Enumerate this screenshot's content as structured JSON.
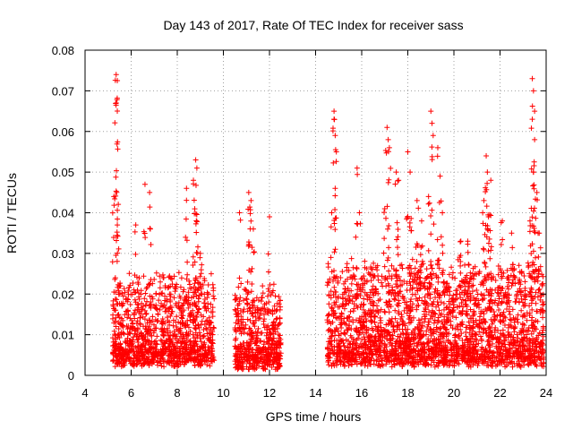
{
  "chart_data": {
    "type": "scatter",
    "title": "Day 143 of 2017, Rate Of TEC Index for receiver sass",
    "xlabel": "GPS time / hours",
    "ylabel": "ROTI / TECUs",
    "xlim": [
      4,
      24
    ],
    "ylim": [
      0,
      0.08
    ],
    "x_ticks": [
      4,
      6,
      8,
      10,
      12,
      14,
      16,
      18,
      20,
      22,
      24
    ],
    "x_tick_labels": [
      "4",
      "6",
      "8",
      "10",
      "12",
      "14",
      "16",
      "18",
      "20",
      "22",
      "24"
    ],
    "y_ticks": [
      0,
      0.01,
      0.02,
      0.03,
      0.04,
      0.05,
      0.06,
      0.07,
      0.08
    ],
    "y_tick_labels": [
      "0",
      "0.01",
      "0.02",
      "0.03",
      "0.04",
      "0.05",
      "0.06",
      "0.07",
      "0.08"
    ],
    "grid": true,
    "marker": "+",
    "color": "#ff0000",
    "series": [
      {
        "name": "ROTI",
        "segments": [
          {
            "x_start": 5.2,
            "x_end": 9.6,
            "typical_max": 0.025,
            "base": 0.005
          },
          {
            "x_start": 10.5,
            "x_end": 12.5,
            "typical_max": 0.022,
            "base": 0.004
          },
          {
            "x_start": 14.5,
            "x_end": 23.9,
            "typical_max": 0.028,
            "base": 0.005
          }
        ],
        "peaks": [
          {
            "x": 5.35,
            "y": 0.074
          },
          {
            "x": 5.4,
            "y": 0.0725
          },
          {
            "x": 5.35,
            "y": 0.067
          },
          {
            "x": 5.25,
            "y": 0.044
          },
          {
            "x": 5.4,
            "y": 0.037
          },
          {
            "x": 6.2,
            "y": 0.037
          },
          {
            "x": 6.6,
            "y": 0.047
          },
          {
            "x": 6.8,
            "y": 0.045
          },
          {
            "x": 8.8,
            "y": 0.053
          },
          {
            "x": 8.85,
            "y": 0.051
          },
          {
            "x": 8.7,
            "y": 0.048
          },
          {
            "x": 8.4,
            "y": 0.046
          },
          {
            "x": 9.0,
            "y": 0.03
          },
          {
            "x": 10.7,
            "y": 0.04
          },
          {
            "x": 11.1,
            "y": 0.045
          },
          {
            "x": 11.2,
            "y": 0.043
          },
          {
            "x": 11.3,
            "y": 0.036
          },
          {
            "x": 12.0,
            "y": 0.039
          },
          {
            "x": 14.8,
            "y": 0.065
          },
          {
            "x": 14.8,
            "y": 0.063
          },
          {
            "x": 14.85,
            "y": 0.059
          },
          {
            "x": 14.9,
            "y": 0.055
          },
          {
            "x": 14.85,
            "y": 0.046
          },
          {
            "x": 14.7,
            "y": 0.04
          },
          {
            "x": 15.8,
            "y": 0.051
          },
          {
            "x": 15.9,
            "y": 0.04
          },
          {
            "x": 17.1,
            "y": 0.061
          },
          {
            "x": 17.15,
            "y": 0.058
          },
          {
            "x": 17.2,
            "y": 0.056
          },
          {
            "x": 17.5,
            "y": 0.05
          },
          {
            "x": 17.6,
            "y": 0.048
          },
          {
            "x": 17.0,
            "y": 0.041
          },
          {
            "x": 18.0,
            "y": 0.055
          },
          {
            "x": 18.1,
            "y": 0.05
          },
          {
            "x": 18.4,
            "y": 0.043
          },
          {
            "x": 18.6,
            "y": 0.038
          },
          {
            "x": 19.0,
            "y": 0.065
          },
          {
            "x": 19.05,
            "y": 0.062
          },
          {
            "x": 19.1,
            "y": 0.059
          },
          {
            "x": 19.3,
            "y": 0.056
          },
          {
            "x": 19.4,
            "y": 0.049
          },
          {
            "x": 18.9,
            "y": 0.044
          },
          {
            "x": 19.5,
            "y": 0.04
          },
          {
            "x": 20.3,
            "y": 0.033
          },
          {
            "x": 20.6,
            "y": 0.033
          },
          {
            "x": 21.4,
            "y": 0.054
          },
          {
            "x": 21.45,
            "y": 0.05
          },
          {
            "x": 21.6,
            "y": 0.048
          },
          {
            "x": 21.3,
            "y": 0.043
          },
          {
            "x": 21.5,
            "y": 0.039
          },
          {
            "x": 22.1,
            "y": 0.038
          },
          {
            "x": 22.5,
            "y": 0.035
          },
          {
            "x": 23.4,
            "y": 0.073
          },
          {
            "x": 23.45,
            "y": 0.07
          },
          {
            "x": 23.5,
            "y": 0.065
          },
          {
            "x": 23.4,
            "y": 0.063
          },
          {
            "x": 23.5,
            "y": 0.058
          },
          {
            "x": 23.45,
            "y": 0.05
          },
          {
            "x": 23.6,
            "y": 0.045
          },
          {
            "x": 23.3,
            "y": 0.038
          },
          {
            "x": 23.7,
            "y": 0.035
          }
        ]
      }
    ]
  }
}
